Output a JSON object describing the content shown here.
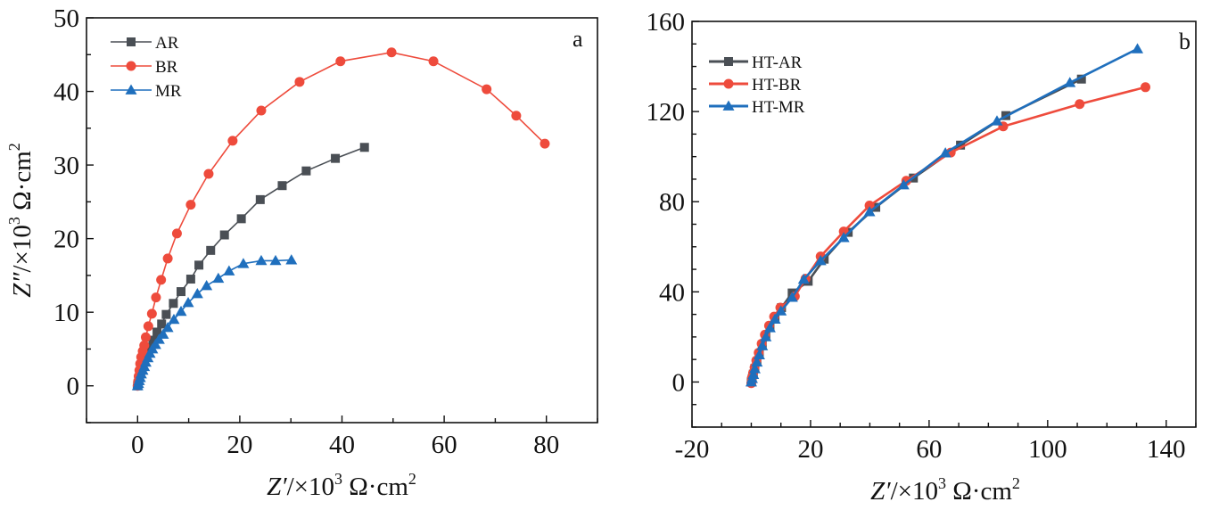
{
  "chart_data": [
    {
      "type": "line",
      "panel_label": "a",
      "title": "",
      "xlabel": "Z′/×10³ Ω·cm²",
      "ylabel": "Z″/×10³ Ω·cm²",
      "xlabel_parts": {
        "sym": "Z′",
        "pre": "/×10",
        "exp": "3",
        "unit": " Ω·cm",
        "uexp": "2"
      },
      "ylabel_parts": {
        "sym": "Z″",
        "pre": "/×10",
        "exp": "3",
        "unit": " Ω·cm",
        "uexp": "2"
      },
      "xlim": [
        -10,
        90
      ],
      "ylim": [
        -5,
        50
      ],
      "xticks": [
        0,
        20,
        40,
        60,
        80
      ],
      "yticks": [
        0,
        10,
        20,
        30,
        40,
        50
      ],
      "x_minor_step": 10,
      "y_minor_step": 5,
      "legend_position": "top-left",
      "grid": false,
      "series": [
        {
          "name": "AR",
          "color": "#4a4f55",
          "marker": "square",
          "points": [
            [
              0.0,
              0.0
            ],
            [
              0.1,
              0.3
            ],
            [
              0.2,
              0.7
            ],
            [
              0.4,
              1.2
            ],
            [
              0.6,
              1.8
            ],
            [
              0.9,
              2.5
            ],
            [
              1.3,
              3.3
            ],
            [
              1.8,
              4.2
            ],
            [
              2.4,
              5.2
            ],
            [
              3.0,
              6.2
            ],
            [
              3.8,
              7.3
            ],
            [
              4.7,
              8.4
            ],
            [
              5.6,
              9.7
            ],
            [
              7.0,
              11.2
            ],
            [
              8.5,
              12.8
            ],
            [
              10.4,
              14.5
            ],
            [
              12.0,
              16.4
            ],
            [
              14.3,
              18.4
            ],
            [
              17.0,
              20.5
            ],
            [
              20.3,
              22.7
            ],
            [
              24.0,
              25.3
            ],
            [
              28.3,
              27.2
            ],
            [
              33.0,
              29.2
            ],
            [
              38.7,
              30.9
            ],
            [
              44.4,
              32.4
            ]
          ]
        },
        {
          "name": "BR",
          "color": "#ee4b3c",
          "marker": "circle",
          "points": [
            [
              0.0,
              0.0
            ],
            [
              0.1,
              0.6
            ],
            [
              0.2,
              1.3
            ],
            [
              0.35,
              2.1
            ],
            [
              0.5,
              3.0
            ],
            [
              0.7,
              3.9
            ],
            [
              1.0,
              4.7
            ],
            [
              1.3,
              5.5
            ],
            [
              1.6,
              6.6
            ],
            [
              2.1,
              8.1
            ],
            [
              2.8,
              9.8
            ],
            [
              3.6,
              12.0
            ],
            [
              4.6,
              14.4
            ],
            [
              5.9,
              17.3
            ],
            [
              7.7,
              20.7
            ],
            [
              10.4,
              24.6
            ],
            [
              13.9,
              28.8
            ],
            [
              18.6,
              33.3
            ],
            [
              24.2,
              37.4
            ],
            [
              31.7,
              41.3
            ],
            [
              39.7,
              44.1
            ],
            [
              49.7,
              45.3
            ],
            [
              57.9,
              44.1
            ],
            [
              68.3,
              40.3
            ],
            [
              74.1,
              36.7
            ],
            [
              79.7,
              32.9
            ]
          ]
        },
        {
          "name": "MR",
          "color": "#1f6fbd",
          "marker": "triangle",
          "points": [
            [
              0.0,
              0.0
            ],
            [
              0.15,
              0.3
            ],
            [
              0.3,
              0.7
            ],
            [
              0.5,
              1.1
            ],
            [
              0.7,
              1.6
            ],
            [
              1.0,
              2.1
            ],
            [
              1.3,
              2.6
            ],
            [
              1.6,
              3.2
            ],
            [
              2.0,
              3.8
            ],
            [
              2.4,
              4.4
            ],
            [
              2.9,
              5.0
            ],
            [
              3.5,
              5.6
            ],
            [
              4.2,
              6.3
            ],
            [
              5.0,
              7.0
            ],
            [
              5.9,
              7.9
            ],
            [
              7.1,
              9.0
            ],
            [
              8.5,
              10.1
            ],
            [
              9.9,
              11.3
            ],
            [
              11.7,
              12.5
            ],
            [
              13.5,
              13.6
            ],
            [
              15.8,
              14.6
            ],
            [
              17.9,
              15.6
            ],
            [
              20.7,
              16.6
            ],
            [
              24.2,
              17.0
            ],
            [
              27.0,
              17.0
            ],
            [
              30.1,
              17.1
            ]
          ]
        }
      ]
    },
    {
      "type": "line",
      "panel_label": "b",
      "title": "",
      "xlabel": "Z′/×10³ Ω·cm²",
      "ylabel": "",
      "xlabel_parts": {
        "sym": "Z′",
        "pre": "/×10",
        "exp": "3",
        "unit": " Ω·cm",
        "uexp": "2"
      },
      "xlim": [
        -20,
        150
      ],
      "ylim": [
        -20,
        160
      ],
      "xticks": [
        -20,
        20,
        60,
        100,
        140
      ],
      "yticks": [
        0,
        40,
        80,
        120,
        160
      ],
      "x_minor_step": 10,
      "y_minor_step": 10,
      "legend_position": "top-left",
      "grid": false,
      "series": [
        {
          "name": "HT-AR",
          "color": "#4a4f55",
          "marker": "square",
          "points": [
            [
              0.0,
              0.0
            ],
            [
              0.3,
              1.5
            ],
            [
              0.7,
              3.5
            ],
            [
              1.2,
              6.0
            ],
            [
              1.9,
              9.0
            ],
            [
              2.7,
              12.5
            ],
            [
              3.7,
              16.5
            ],
            [
              4.9,
              20.5
            ],
            [
              6.3,
              24.5
            ],
            [
              8.0,
              28.5
            ],
            [
              10.2,
              33.0
            ],
            [
              13.8,
              39.5
            ],
            [
              19.2,
              44.7
            ],
            [
              24.6,
              54.5
            ],
            [
              32.7,
              66.4
            ],
            [
              42.0,
              77.5
            ],
            [
              54.7,
              90.5
            ],
            [
              70.6,
              105.1
            ],
            [
              85.9,
              118.2
            ],
            [
              111.4,
              134.4
            ]
          ]
        },
        {
          "name": "HT-BR",
          "color": "#ee4b3c",
          "marker": "circle",
          "points": [
            [
              0.0,
              -0.5
            ],
            [
              0.2,
              1.8
            ],
            [
              0.6,
              4.0
            ],
            [
              1.1,
              6.5
            ],
            [
              1.7,
              9.5
            ],
            [
              2.5,
              13.0
            ],
            [
              3.5,
              17.0
            ],
            [
              4.6,
              21.0
            ],
            [
              6.0,
              25.0
            ],
            [
              7.7,
              29.0
            ],
            [
              9.8,
              33.0
            ],
            [
              14.7,
              38.0
            ],
            [
              18.3,
              45.8
            ],
            [
              23.4,
              55.7
            ],
            [
              31.2,
              66.8
            ],
            [
              39.9,
              78.3
            ],
            [
              52.3,
              89.3
            ],
            [
              67.3,
              101.8
            ],
            [
              85.0,
              113.4
            ],
            [
              110.8,
              123.3
            ],
            [
              133.0,
              130.8
            ]
          ]
        },
        {
          "name": "HT-MR",
          "color": "#1f6fbd",
          "marker": "triangle",
          "points": [
            [
              0.0,
              0.0
            ],
            [
              0.3,
              1.5
            ],
            [
              0.7,
              3.3
            ],
            [
              1.2,
              5.8
            ],
            [
              1.9,
              8.8
            ],
            [
              2.7,
              12.0
            ],
            [
              3.7,
              16.0
            ],
            [
              4.9,
              20.0
            ],
            [
              6.3,
              24.0
            ],
            [
              8.0,
              27.8
            ],
            [
              10.0,
              31.5
            ],
            [
              13.8,
              37.5
            ],
            [
              17.7,
              45.5
            ],
            [
              23.4,
              53.8
            ],
            [
              31.2,
              64.0
            ],
            [
              39.9,
              75.5
            ],
            [
              51.4,
              87.4
            ],
            [
              65.5,
              101.6
            ],
            [
              82.9,
              115.8
            ],
            [
              107.5,
              132.8
            ],
            [
              130.3,
              147.8
            ]
          ]
        }
      ]
    }
  ]
}
